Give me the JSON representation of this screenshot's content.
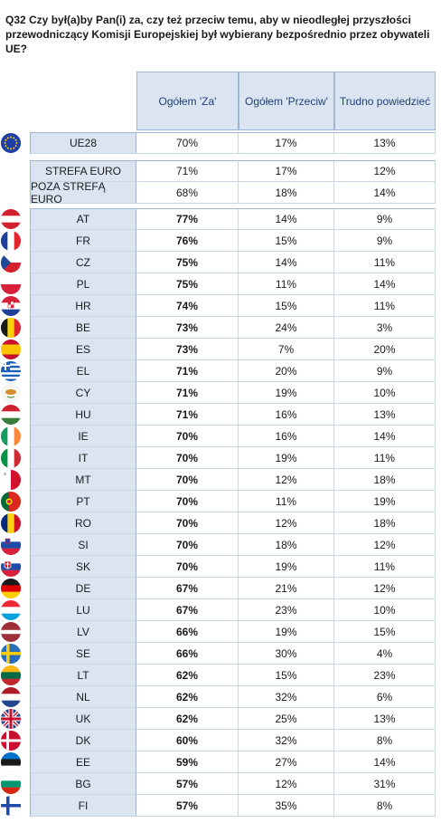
{
  "question": "Q32 Czy był(a)by Pan(i) za, czy też przeciw temu, aby w nieodległej przyszłości przewodniczący Komisji Europejskiej był wybierany bezpośrednio przez obywateli UE?",
  "columns": [
    "Ogółem 'Za'",
    "Ogółem 'Przeciw'",
    "Trudno powiedzieć"
  ],
  "eu_row": {
    "label": "UE28",
    "values": [
      "70%",
      "17%",
      "13%"
    ],
    "flag": "eu-flag-icon"
  },
  "euro_rows": [
    {
      "label": "STREFA EURO",
      "values": [
        "71%",
        "17%",
        "12%"
      ]
    },
    {
      "label": "POZA STREFĄ EURO",
      "values": [
        "68%",
        "18%",
        "14%"
      ]
    }
  ],
  "country_rows": [
    {
      "label": "AT",
      "values": [
        "77%",
        "14%",
        "9%"
      ]
    },
    {
      "label": "FR",
      "values": [
        "76%",
        "15%",
        "9%"
      ]
    },
    {
      "label": "CZ",
      "values": [
        "75%",
        "14%",
        "11%"
      ]
    },
    {
      "label": "PL",
      "values": [
        "75%",
        "11%",
        "14%"
      ]
    },
    {
      "label": "HR",
      "values": [
        "74%",
        "15%",
        "11%"
      ]
    },
    {
      "label": "BE",
      "values": [
        "73%",
        "24%",
        "3%"
      ]
    },
    {
      "label": "ES",
      "values": [
        "73%",
        "7%",
        "20%"
      ]
    },
    {
      "label": "EL",
      "values": [
        "71%",
        "20%",
        "9%"
      ]
    },
    {
      "label": "CY",
      "values": [
        "71%",
        "19%",
        "10%"
      ]
    },
    {
      "label": "HU",
      "values": [
        "71%",
        "16%",
        "13%"
      ]
    },
    {
      "label": "IE",
      "values": [
        "70%",
        "16%",
        "14%"
      ]
    },
    {
      "label": "IT",
      "values": [
        "70%",
        "19%",
        "11%"
      ]
    },
    {
      "label": "MT",
      "values": [
        "70%",
        "12%",
        "18%"
      ]
    },
    {
      "label": "PT",
      "values": [
        "70%",
        "11%",
        "19%"
      ]
    },
    {
      "label": "RO",
      "values": [
        "70%",
        "12%",
        "18%"
      ]
    },
    {
      "label": "SI",
      "values": [
        "70%",
        "18%",
        "12%"
      ]
    },
    {
      "label": "SK",
      "values": [
        "70%",
        "19%",
        "11%"
      ]
    },
    {
      "label": "DE",
      "values": [
        "67%",
        "21%",
        "12%"
      ]
    },
    {
      "label": "LU",
      "values": [
        "67%",
        "23%",
        "10%"
      ]
    },
    {
      "label": "LV",
      "values": [
        "66%",
        "19%",
        "15%"
      ]
    },
    {
      "label": "SE",
      "values": [
        "66%",
        "30%",
        "4%"
      ]
    },
    {
      "label": "LT",
      "values": [
        "62%",
        "15%",
        "23%"
      ]
    },
    {
      "label": "NL",
      "values": [
        "62%",
        "32%",
        "6%"
      ]
    },
    {
      "label": "UK",
      "values": [
        "62%",
        "25%",
        "13%"
      ]
    },
    {
      "label": "DK",
      "values": [
        "60%",
        "32%",
        "8%"
      ]
    },
    {
      "label": "EE",
      "values": [
        "59%",
        "27%",
        "14%"
      ]
    },
    {
      "label": "BG",
      "values": [
        "57%",
        "12%",
        "31%"
      ]
    },
    {
      "label": "FI",
      "values": [
        "57%",
        "35%",
        "8%"
      ]
    }
  ],
  "colors": {
    "header_bg": "#dbe5f1",
    "header_text": "#1f3f7a",
    "border": "#9fb7d3"
  }
}
